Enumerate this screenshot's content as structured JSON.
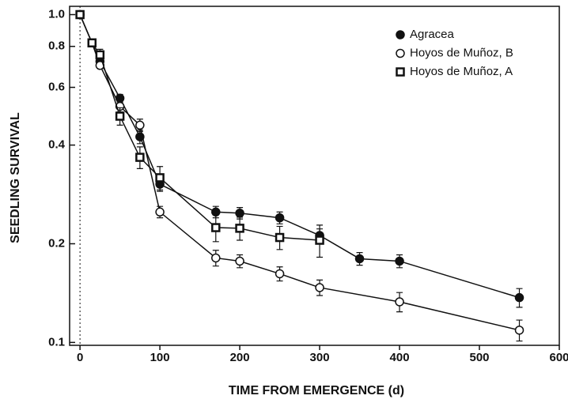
{
  "chart_data": {
    "type": "line",
    "log_y": true,
    "grid": false,
    "legend": "upper right",
    "xlabel": "TIME FROM EMERGENCE (d)",
    "ylabel": "SEEDLING SURVIVAL",
    "xlim": [
      -13,
      600
    ],
    "xticks": [
      0,
      100,
      200,
      300,
      400,
      500,
      600
    ],
    "ylim": [
      0.098,
      1.06
    ],
    "yticks": [
      0.1,
      0.2,
      0.4,
      0.6,
      0.8,
      {
        "value": 1,
        "label": "1.0"
      }
    ],
    "series": [
      {
        "name": "Agracea",
        "color": "#111111",
        "marker": "circle-filled",
        "x": [
          0,
          15,
          25,
          50,
          75,
          100,
          170,
          200,
          250,
          300,
          350,
          400,
          550
        ],
        "values": [
          1.0,
          0.82,
          0.72,
          0.556,
          0.424,
          0.304,
          0.25,
          0.248,
          0.24,
          0.212,
          0.18,
          0.177,
          0.137
        ],
        "errors": [
          null,
          null,
          null,
          0.015,
          0.02,
          0.015,
          0.01,
          0.01,
          0.01,
          0.01,
          0.008,
          0.008,
          0.009
        ]
      },
      {
        "name": "Hoyos de Muñoz, B",
        "color": "#111111",
        "marker": "circle-open",
        "x": [
          0,
          15,
          25,
          50,
          75,
          100,
          170,
          200,
          250,
          300,
          400,
          550
        ],
        "values": [
          1.0,
          0.82,
          0.7,
          0.525,
          0.46,
          0.25,
          0.181,
          0.177,
          0.162,
          0.147,
          0.133,
          0.109
        ],
        "errors": [
          null,
          null,
          null,
          0.02,
          0.02,
          0.01,
          0.01,
          0.008,
          0.008,
          0.008,
          0.009,
          0.008
        ]
      },
      {
        "name": "Hoyos de Muñoz, A",
        "color": "#111111",
        "marker": "square-open",
        "x": [
          0,
          15,
          25,
          50,
          75,
          100,
          170,
          200,
          250,
          300
        ],
        "values": [
          1.0,
          0.82,
          0.754,
          0.49,
          0.367,
          0.318,
          0.224,
          0.223,
          0.209,
          0.205
        ],
        "errors": [
          null,
          0.02,
          0.03,
          0.03,
          0.028,
          0.026,
          0.021,
          0.018,
          0.017,
          0.023
        ]
      }
    ]
  }
}
